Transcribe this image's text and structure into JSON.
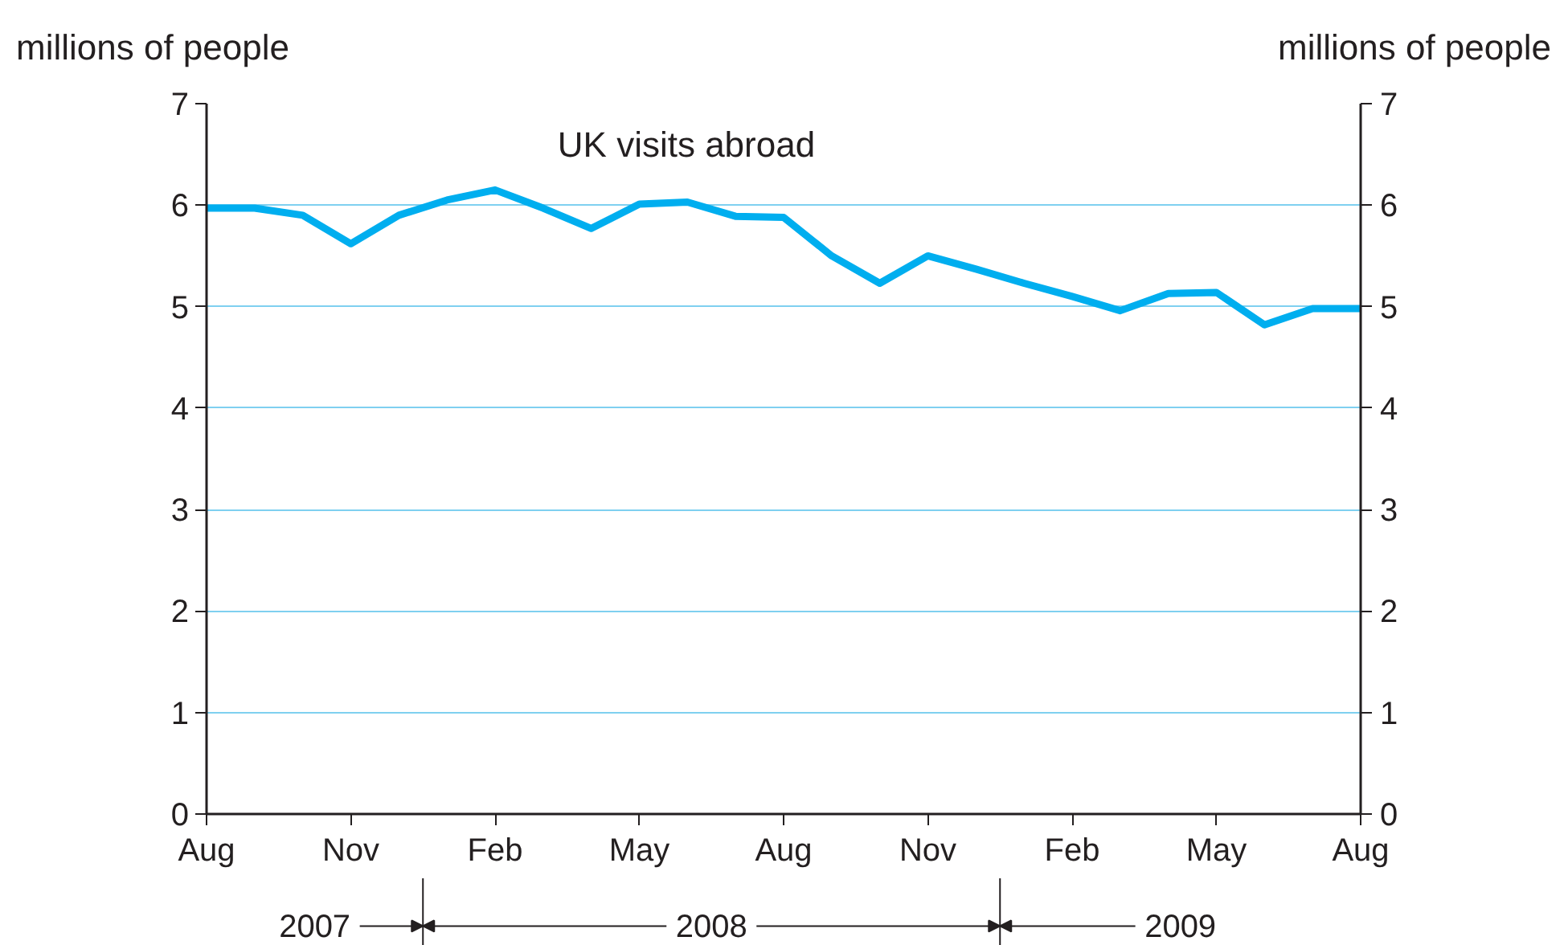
{
  "chart_data": {
    "type": "line",
    "ylabel": "millions of people",
    "y2label": "millions of people",
    "x": [
      "2007-08",
      "2007-09",
      "2007-10",
      "2007-11",
      "2007-12",
      "2008-01",
      "2008-02",
      "2008-03",
      "2008-04",
      "2008-05",
      "2008-06",
      "2008-07",
      "2008-08",
      "2008-09",
      "2008-10",
      "2008-11",
      "2008-12",
      "2009-01",
      "2009-02",
      "2009-03",
      "2009-04",
      "2009-05",
      "2009-06",
      "2009-07",
      "2009-08"
    ],
    "series": [
      {
        "name": "UK visits abroad",
        "color": "#00aeef",
        "values": [
          5.97,
          5.97,
          5.9,
          5.62,
          5.9,
          6.05,
          6.15,
          5.97,
          5.77,
          6.01,
          6.03,
          5.89,
          5.88,
          5.5,
          5.23,
          5.5,
          5.37,
          5.23,
          5.1,
          4.96,
          5.13,
          5.14,
          4.82,
          4.98,
          4.98
        ]
      }
    ],
    "xlim": [
      "2007-08",
      "2009-08"
    ],
    "xticks": [
      {
        "value": "2007-08",
        "label": "Aug"
      },
      {
        "value": "2007-11",
        "label": "Nov"
      },
      {
        "value": "2008-02",
        "label": "Feb"
      },
      {
        "value": "2008-05",
        "label": "May"
      },
      {
        "value": "2008-08",
        "label": "Aug"
      },
      {
        "value": "2008-11",
        "label": "Nov"
      },
      {
        "value": "2009-02",
        "label": "Feb"
      },
      {
        "value": "2009-05",
        "label": "May"
      },
      {
        "value": "2009-08",
        "label": "Aug"
      }
    ],
    "ylim": [
      0,
      7
    ],
    "yticks": [
      0,
      1,
      2,
      3,
      4,
      5,
      6,
      7
    ],
    "y2lim": [
      0,
      7
    ],
    "y2ticks": [
      0,
      1,
      2,
      3,
      4,
      5,
      6,
      7
    ],
    "annotations": [
      "2007",
      "2008",
      "2009"
    ],
    "grid": "y",
    "line_style": "solid"
  }
}
